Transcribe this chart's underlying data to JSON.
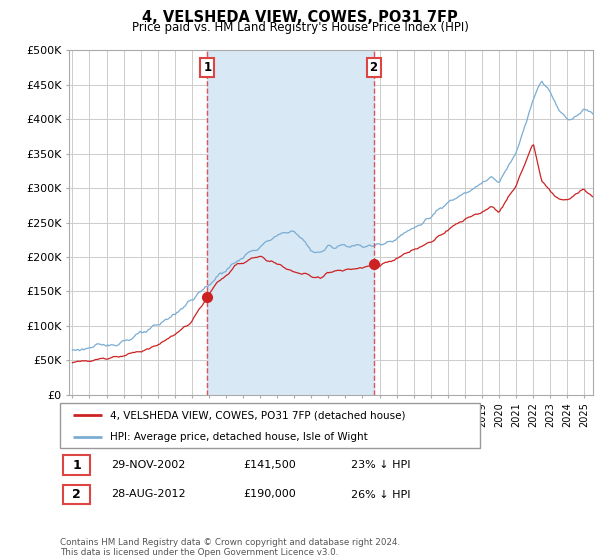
{
  "title": "4, VELSHEDA VIEW, COWES, PO31 7FP",
  "subtitle": "Price paid vs. HM Land Registry's House Price Index (HPI)",
  "ylabel_labels": [
    "£0",
    "£50K",
    "£100K",
    "£150K",
    "£200K",
    "£250K",
    "£300K",
    "£350K",
    "£400K",
    "£450K",
    "£500K"
  ],
  "ylabel_values": [
    0,
    50000,
    100000,
    150000,
    200000,
    250000,
    300000,
    350000,
    400000,
    450000,
    500000
  ],
  "ylim": [
    0,
    500000
  ],
  "xlim_start": 1994.8,
  "xlim_end": 2025.5,
  "purchase1_date": 2002.91,
  "purchase1_price": 141500,
  "purchase1_label": "1",
  "purchase2_date": 2012.65,
  "purchase2_price": 190000,
  "purchase2_label": "2",
  "legend_line1": "4, VELSHEDA VIEW, COWES, PO31 7FP (detached house)",
  "legend_line2": "HPI: Average price, detached house, Isle of Wight",
  "table_row1": [
    "1",
    "29-NOV-2002",
    "£141,500",
    "23% ↓ HPI"
  ],
  "table_row2": [
    "2",
    "28-AUG-2012",
    "£190,000",
    "26% ↓ HPI"
  ],
  "footer": "Contains HM Land Registry data © Crown copyright and database right 2024.\nThis data is licensed under the Open Government Licence v3.0.",
  "hpi_color": "#7aadd4",
  "price_color": "#cc2222",
  "vline_color": "#dd4444",
  "shade_color": "#d8e8f5",
  "background_color": "#ffffff",
  "grid_color": "#cccccc",
  "hpi_anchors_t": [
    1995.0,
    1996.0,
    1997.0,
    1998.0,
    1999.0,
    2000.0,
    2001.0,
    2002.0,
    2003.0,
    2004.0,
    2005.0,
    2006.0,
    2007.0,
    2007.8,
    2008.5,
    2009.0,
    2009.5,
    2010.0,
    2011.0,
    2012.0,
    2013.0,
    2014.0,
    2015.0,
    2016.0,
    2017.0,
    2018.0,
    2019.0,
    2019.5,
    2020.0,
    2021.0,
    2021.5,
    2022.0,
    2022.5,
    2023.0,
    2023.5,
    2024.0,
    2024.5,
    2025.0,
    2025.5
  ],
  "hpi_anchors_y": [
    65000,
    68000,
    72000,
    78000,
    88000,
    100000,
    118000,
    138000,
    160000,
    182000,
    200000,
    215000,
    230000,
    240000,
    225000,
    210000,
    205000,
    215000,
    218000,
    215000,
    218000,
    228000,
    242000,
    258000,
    278000,
    295000,
    308000,
    315000,
    308000,
    350000,
    390000,
    430000,
    455000,
    440000,
    415000,
    400000,
    405000,
    415000,
    408000
  ],
  "price_anchors_t": [
    1995.0,
    1996.0,
    1997.0,
    1998.0,
    1999.0,
    2000.0,
    2001.0,
    2002.0,
    2002.91,
    2003.5,
    2004.0,
    2004.5,
    2005.0,
    2005.5,
    2006.0,
    2006.5,
    2007.0,
    2007.5,
    2008.0,
    2008.5,
    2009.0,
    2009.5,
    2010.0,
    2011.0,
    2012.0,
    2012.65,
    2013.0,
    2014.0,
    2015.0,
    2016.0,
    2017.0,
    2018.0,
    2019.0,
    2019.5,
    2020.0,
    2021.0,
    2021.5,
    2022.0,
    2022.5,
    2023.0,
    2023.5,
    2024.0,
    2024.5,
    2025.0,
    2025.5
  ],
  "price_anchors_y": [
    48000,
    50000,
    53000,
    57000,
    64000,
    72000,
    87000,
    107000,
    141500,
    162000,
    175000,
    185000,
    192000,
    198000,
    200000,
    195000,
    190000,
    185000,
    178000,
    175000,
    172000,
    170000,
    178000,
    181000,
    183000,
    190000,
    186000,
    198000,
    210000,
    222000,
    240000,
    255000,
    266000,
    272000,
    265000,
    303000,
    335000,
    365000,
    310000,
    295000,
    285000,
    282000,
    290000,
    298000,
    288000
  ]
}
